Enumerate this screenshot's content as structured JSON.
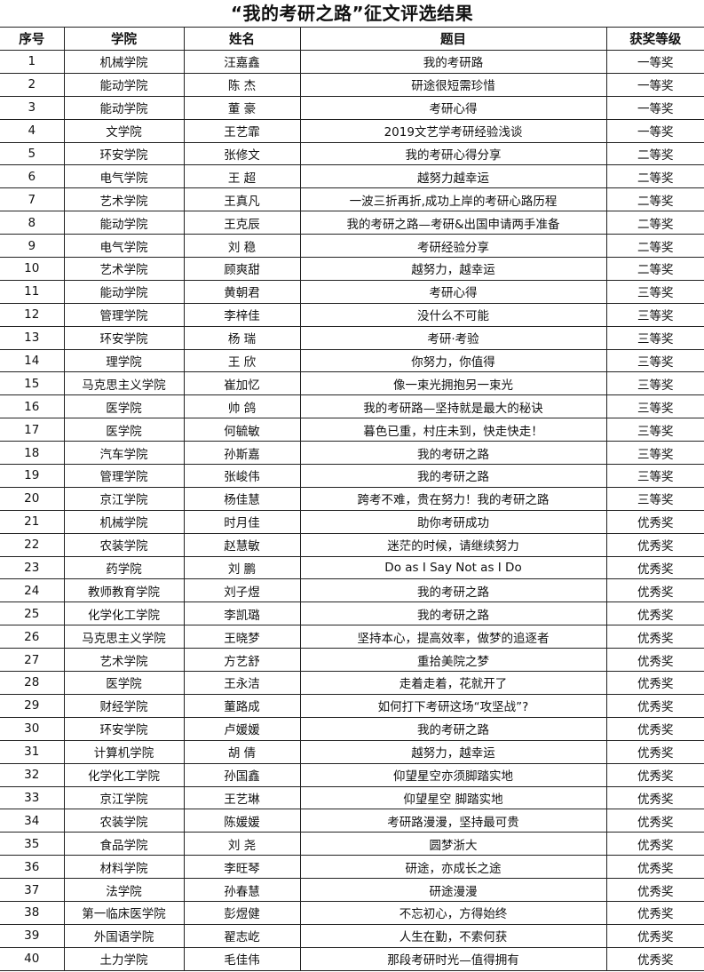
{
  "title": "“我的考研之路”征文评选结果",
  "headers": [
    "序号",
    "学院",
    "姓名",
    "题目",
    "获奖等级"
  ],
  "rows": [
    [
      "1",
      "机械学院",
      "汪嘉鑫",
      "我的考研路",
      "一等奖"
    ],
    [
      "2",
      "能动学院",
      "陈 杰",
      "研途很短需珍惜",
      "一等奖"
    ],
    [
      "3",
      "能动学院",
      "董 豪",
      "考研心得",
      "一等奖"
    ],
    [
      "4",
      "文学院",
      "王艺霏",
      "2019文艺学考研经验浅谈",
      "一等奖"
    ],
    [
      "5",
      "环安学院",
      "张修文",
      "我的考研心得分享",
      "二等奖"
    ],
    [
      "6",
      "电气学院",
      "王 超",
      "越努力越幸运",
      "二等奖"
    ],
    [
      "7",
      "艺术学院",
      "王真凡",
      "一波三折再折,成功上岸的考研心路历程",
      "二等奖"
    ],
    [
      "8",
      "能动学院",
      "王克辰",
      "我的考研之路—考研&出国申请两手准备",
      "二等奖"
    ],
    [
      "9",
      "电气学院",
      "刘 稳",
      "考研经验分享",
      "二等奖"
    ],
    [
      "10",
      "艺术学院",
      "顾爽甜",
      "越努力，越幸运",
      "二等奖"
    ],
    [
      "11",
      "能动学院",
      "黄朝君",
      "考研心得",
      "三等奖"
    ],
    [
      "12",
      "管理学院",
      "李梓佳",
      "没什么不可能",
      "三等奖"
    ],
    [
      "13",
      "环安学院",
      "杨 瑞",
      "考研·考验",
      "三等奖"
    ],
    [
      "14",
      "理学院",
      "王 欣",
      "你努力，你值得",
      "三等奖"
    ],
    [
      "15",
      "马克思主义学院",
      "崔加忆",
      "像一束光拥抱另一束光",
      "三等奖"
    ],
    [
      "16",
      "医学院",
      "帅 鸽",
      "我的考研路—坚持就是最大的秘诀",
      "三等奖"
    ],
    [
      "17",
      "医学院",
      "何毓敏",
      "暮色已重，村庄未到，快走快走！",
      "三等奖"
    ],
    [
      "18",
      "汽车学院",
      "孙斯嘉",
      "我的考研之路",
      "三等奖"
    ],
    [
      "19",
      "管理学院",
      "张峻伟",
      "我的考研之路",
      "三等奖"
    ],
    [
      "20",
      "京江学院",
      "杨佳慧",
      "跨考不难，贵在努力！我的考研之路",
      "三等奖"
    ],
    [
      "21",
      "机械学院",
      "时月佳",
      "助你考研成功",
      "优秀奖"
    ],
    [
      "22",
      "农装学院",
      "赵慧敏",
      "迷茫的时候，请继续努力",
      "优秀奖"
    ],
    [
      "23",
      "药学院",
      "刘 鹏",
      "Do as I Say Not as I Do",
      "优秀奖"
    ],
    [
      "24",
      "教师教育学院",
      "刘子煜",
      "我的考研之路",
      "优秀奖"
    ],
    [
      "25",
      "化学化工学院",
      "李凯璐",
      "我的考研之路",
      "优秀奖"
    ],
    [
      "26",
      "马克思主义学院",
      "王晓梦",
      "坚持本心，提高效率，做梦的追逐者",
      "优秀奖"
    ],
    [
      "27",
      "艺术学院",
      "方艺舒",
      "重拾美院之梦",
      "优秀奖"
    ],
    [
      "28",
      "医学院",
      "王永洁",
      "走着走着，花就开了",
      "优秀奖"
    ],
    [
      "29",
      "财经学院",
      "董路成",
      "如何打下考研这场“攻坚战”?",
      "优秀奖"
    ],
    [
      "30",
      "环安学院",
      "卢媛媛",
      "我的考研之路",
      "优秀奖"
    ],
    [
      "31",
      "计算机学院",
      "胡 倩",
      "越努力，越幸运",
      "优秀奖"
    ],
    [
      "32",
      "化学化工学院",
      "孙国鑫",
      "仰望星空亦须脚踏实地",
      "优秀奖"
    ],
    [
      "33",
      "京江学院",
      "王艺琳",
      "仰望星空 脚踏实地",
      "优秀奖"
    ],
    [
      "34",
      "农装学院",
      "陈媛媛",
      "考研路漫漫，坚持最可贵",
      "优秀奖"
    ],
    [
      "35",
      "食品学院",
      "刘 尧",
      "圆梦浙大",
      "优秀奖"
    ],
    [
      "36",
      "材料学院",
      "李旺琴",
      "研途，亦成长之途",
      "优秀奖"
    ],
    [
      "37",
      "法学院",
      "孙春慧",
      "研途漫漫",
      "优秀奖"
    ],
    [
      "38",
      "第一临床医学院",
      "彭煜健",
      "不忘初心，方得始终",
      "优秀奖"
    ],
    [
      "39",
      "外国语学院",
      "翟志屹",
      "人生在勤，不索何获",
      "优秀奖"
    ],
    [
      "40",
      "土力学院",
      "毛佳伟",
      "那段考研时光—值得拥有",
      "优秀奖"
    ]
  ]
}
